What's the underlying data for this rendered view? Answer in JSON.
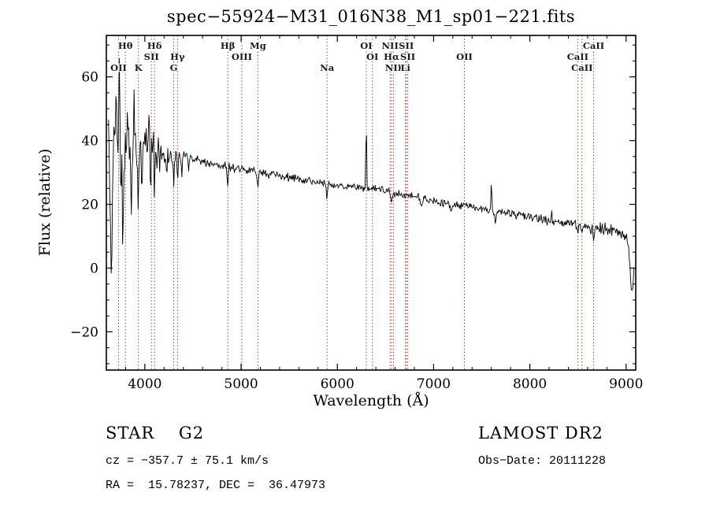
{
  "chart_data": {
    "type": "line",
    "title": "spec−55924−M31_016N38_M1_sp01−221.fits",
    "xlabel": "Wavelength (Å)",
    "ylabel": "Flux (relative)",
    "xlim": [
      3600,
      9100
    ],
    "ylim": [
      -32,
      73
    ],
    "x_ticks": [
      4000,
      5000,
      6000,
      7000,
      8000,
      9000
    ],
    "y_ticks": [
      -20,
      0,
      20,
      40,
      60
    ],
    "x_minor_step": 200,
    "y_minor_step": 5,
    "grid": false,
    "legend": "none",
    "series_color": "#000000",
    "line_color": "#a8402c",
    "label_color": "#1a1a1a",
    "x_range": [
      3622,
      9085
    ],
    "sample_step": 7,
    "noise_seed": 55924,
    "continuum": {
      "x_start": 3600,
      "x_step": 100,
      "values": [
        35,
        36,
        37,
        37,
        38,
        37.5,
        36,
        35,
        35,
        34,
        33.5,
        33,
        32,
        31.5,
        31,
        30.5,
        30,
        29.5,
        29,
        28.5,
        28,
        27.5,
        27,
        26.5,
        26,
        25.5,
        25.5,
        25,
        25,
        24,
        23.5,
        23,
        22.5,
        22,
        21,
        20.5,
        20,
        19.5,
        19,
        18.5,
        18,
        17.5,
        17,
        16.5,
        16,
        15.5,
        15,
        14.5,
        14,
        13.5,
        13,
        12.5,
        12,
        11,
        10,
        7
      ]
    },
    "noise_regions": [
      {
        "from": 3600,
        "to": 3800,
        "amp": 18
      },
      {
        "from": 3800,
        "to": 3950,
        "amp": 11
      },
      {
        "from": 3950,
        "to": 4160,
        "amp": 8
      },
      {
        "from": 4160,
        "to": 4420,
        "amp": 3.2
      },
      {
        "from": 4420,
        "to": 5600,
        "amp": 1.7
      },
      {
        "from": 5600,
        "to": 6800,
        "amp": 1.4
      },
      {
        "from": 6800,
        "to": 7800,
        "amp": 1.6
      },
      {
        "from": 7800,
        "to": 8600,
        "amp": 1.8
      },
      {
        "from": 8600,
        "to": 9100,
        "amp": 2.4
      }
    ],
    "features": [
      {
        "x": 3650,
        "amp": -30,
        "sigma": 8
      },
      {
        "x": 3700,
        "amp": 22,
        "sigma": 5
      },
      {
        "x": 3735,
        "amp": 26,
        "sigma": 5
      },
      {
        "x": 3770,
        "amp": -28,
        "sigma": 6
      },
      {
        "x": 3820,
        "amp": 20,
        "sigma": 4
      },
      {
        "x": 3860,
        "amp": -18,
        "sigma": 5
      },
      {
        "x": 3890,
        "amp": 16,
        "sigma": 4
      },
      {
        "x": 3933,
        "amp": -22,
        "sigma": 5
      },
      {
        "x": 3970,
        "amp": -14,
        "sigma": 5
      },
      {
        "x": 4045,
        "amp": 12,
        "sigma": 4
      },
      {
        "x": 4060,
        "amp": -20,
        "sigma": 4
      },
      {
        "x": 4101,
        "amp": -12,
        "sigma": 5
      },
      {
        "x": 4227,
        "amp": -6,
        "sigma": 4
      },
      {
        "x": 4300,
        "amp": -7,
        "sigma": 7
      },
      {
        "x": 4340,
        "amp": -8,
        "sigma": 5
      },
      {
        "x": 4383,
        "amp": -5,
        "sigma": 4
      },
      {
        "x": 4455,
        "amp": -4,
        "sigma": 4
      },
      {
        "x": 4861,
        "amp": -6,
        "sigma": 5
      },
      {
        "x": 5175,
        "amp": -4,
        "sigma": 9
      },
      {
        "x": 5893,
        "amp": -4.5,
        "sigma": 6
      },
      {
        "x": 6300,
        "amp": 22,
        "sigma": 4
      },
      {
        "x": 6563,
        "amp": -4,
        "sigma": 5
      },
      {
        "x": 6867,
        "amp": -3,
        "sigma": 9
      },
      {
        "x": 7180,
        "amp": -2.5,
        "sigma": 8
      },
      {
        "x": 7600,
        "amp": 9,
        "sigma": 5
      },
      {
        "x": 7640,
        "amp": -3,
        "sigma": 7
      },
      {
        "x": 8227,
        "amp": 3,
        "sigma": 4
      },
      {
        "x": 8498,
        "amp": -3,
        "sigma": 4
      },
      {
        "x": 8542,
        "amp": -3,
        "sigma": 4
      },
      {
        "x": 8662,
        "amp": -3.5,
        "sigma": 4
      },
      {
        "x": 9060,
        "amp": -16,
        "sigma": 18
      }
    ],
    "spectral_lines": [
      {
        "label": "OII",
        "wavelength": 3727,
        "row": 2
      },
      {
        "label": "Hθ",
        "wavelength": 3798,
        "row": 0
      },
      {
        "label": "K",
        "wavelength": 3933,
        "row": 2
      },
      {
        "label": "SII",
        "wavelength": 4068,
        "row": 1
      },
      {
        "label": "Hδ",
        "wavelength": 4101,
        "row": 0
      },
      {
        "label": "G",
        "wavelength": 4300,
        "row": 2
      },
      {
        "label": "Hγ",
        "wavelength": 4340,
        "row": 1
      },
      {
        "label": "Hβ",
        "wavelength": 4861,
        "row": 0
      },
      {
        "label": "OIII",
        "wavelength": 5007,
        "row": 1
      },
      {
        "label": "Mg",
        "wavelength": 5175,
        "row": 0
      },
      {
        "label": "Na",
        "wavelength": 5893,
        "row": 2
      },
      {
        "label": "OI",
        "wavelength": 6300,
        "row": 0
      },
      {
        "label": "OI",
        "wavelength": 6364,
        "row": 1
      },
      {
        "label": "NII",
        "wavelength": 6548,
        "row": 0
      },
      {
        "label": "Hα",
        "wavelength": 6563,
        "row": 1
      },
      {
        "label": "NII",
        "wavelength": 6583,
        "row": 2
      },
      {
        "label": "Li",
        "wavelength": 6708,
        "row": 2
      },
      {
        "label": "SII",
        "wavelength": 6716,
        "row": 0
      },
      {
        "label": "SII",
        "wavelength": 6731,
        "row": 1
      },
      {
        "label": "OII",
        "wavelength": 7320,
        "row": 1
      },
      {
        "label": "CaII",
        "wavelength": 8498,
        "row": 1
      },
      {
        "label": "CaII",
        "wavelength": 8542,
        "row": 2
      },
      {
        "label": "CaII",
        "wavelength": 8662,
        "row": 0
      }
    ]
  },
  "annotations": {
    "class_label": "STAR    G2",
    "survey": "LAMOST DR2",
    "cz": "cz = −357.7 ± 75.1 km/s",
    "obs_date": "Obs−Date: 20111228",
    "ra_dec": "RA =  15.78237, DEC =  36.47973"
  }
}
